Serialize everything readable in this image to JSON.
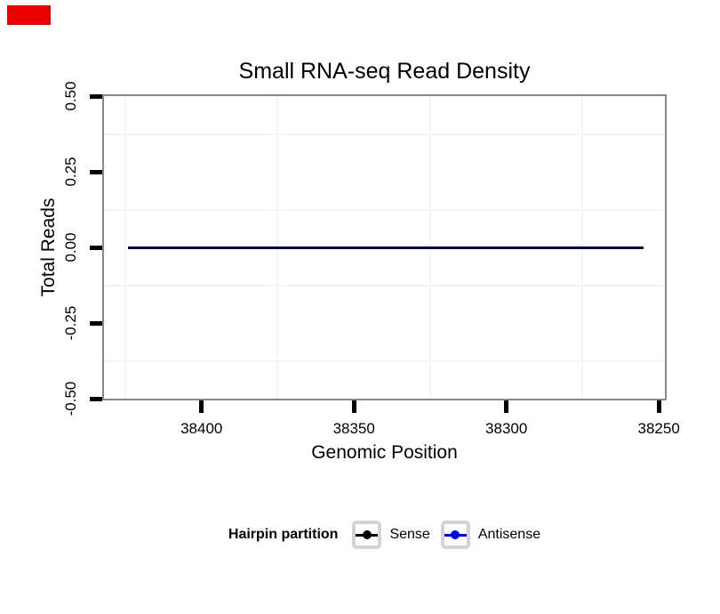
{
  "page": {
    "background": "#ffffff"
  },
  "marker": {
    "color": "#ee0000"
  },
  "chart_data": {
    "type": "line",
    "title": "Small RNA-seq Read Density",
    "xlabel": "Genomic Position",
    "ylabel": "Total Reads",
    "x_axis_reversed": true,
    "xlim": [
      38248,
      38432
    ],
    "ylim": [
      -0.5,
      0.5
    ],
    "grid": "minor gridlines only, very light gray, no major gridlines",
    "legend_position": "bottom",
    "x_ticks": [
      {
        "label": "38400",
        "value": 38400
      },
      {
        "label": "38350",
        "value": 38350
      },
      {
        "label": "38300",
        "value": 38300
      },
      {
        "label": "38250",
        "value": 38250
      }
    ],
    "y_ticks": [
      {
        "label": "0.50",
        "value": 0.5
      },
      {
        "label": "0.25",
        "value": 0.25
      },
      {
        "label": "0.00",
        "value": 0.0
      },
      {
        "label": "-0.25",
        "value": -0.25
      },
      {
        "label": "-0.50",
        "value": -0.5
      }
    ],
    "x_minor_gridlines": [
      38425,
      38375,
      38325,
      38275
    ],
    "y_minor_gridlines": [
      0.375,
      0.125,
      -0.125,
      -0.375
    ],
    "series": [
      {
        "name": "Sense",
        "color": "#000000",
        "x": [
          38424,
          38255
        ],
        "y": [
          0,
          0
        ]
      },
      {
        "name": "Antisense",
        "color": "#0000ff",
        "x": [
          38424,
          38255
        ],
        "y": [
          0,
          0
        ]
      }
    ],
    "legend": {
      "title": "Hairpin partition",
      "entries": [
        {
          "label": "Sense",
          "color": "#000000"
        },
        {
          "label": "Antisense",
          "color": "#0000ff"
        }
      ]
    },
    "colors": {
      "panel_border": "#888888",
      "tick_marks": "#000000",
      "minor_grid": "#f4f4f4",
      "legend_key_border": "#d4d4d4",
      "text": "#000000"
    }
  }
}
